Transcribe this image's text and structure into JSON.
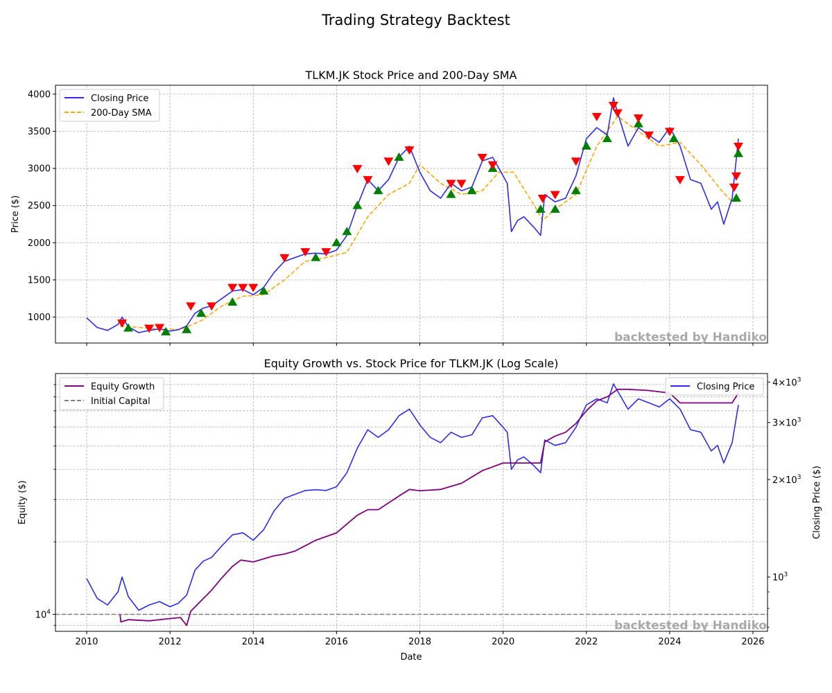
{
  "figure": {
    "suptitle": "Trading Strategy Backtest",
    "watermark": "backtested by Handiko"
  },
  "colors": {
    "closing_price": "#2b2bf0",
    "sma": "#ffa500",
    "equity": "#800080",
    "initial_capital": "#808080",
    "buy_marker": "#008000",
    "sell_marker": "#ff0000"
  },
  "chart_data": [
    {
      "type": "line",
      "title": "TLKM.JK Stock Price and 200-Day SMA",
      "xlabel": "",
      "ylabel": "Price ($)",
      "xlim": [
        2009.25,
        2026.35
      ],
      "ylim": [
        650,
        4120
      ],
      "yticks": [
        1000,
        1500,
        2000,
        2500,
        3000,
        3500,
        4000
      ],
      "grid": true,
      "legend": "upper left",
      "series": [
        {
          "name": "Closing Price",
          "style": "solid",
          "x": [
            2010.0,
            2010.25,
            2010.5,
            2010.75,
            2010.85,
            2011.0,
            2011.25,
            2011.5,
            2011.75,
            2012.0,
            2012.2,
            2012.4,
            2012.6,
            2012.8,
            2013.0,
            2013.25,
            2013.5,
            2013.75,
            2014.0,
            2014.25,
            2014.5,
            2014.75,
            2015.0,
            2015.25,
            2015.5,
            2015.75,
            2016.0,
            2016.25,
            2016.5,
            2016.75,
            2017.0,
            2017.25,
            2017.5,
            2017.75,
            2018.0,
            2018.25,
            2018.5,
            2018.75,
            2019.0,
            2019.25,
            2019.5,
            2019.75,
            2020.0,
            2020.1,
            2020.2,
            2020.35,
            2020.5,
            2020.75,
            2020.9,
            2021.0,
            2021.25,
            2021.5,
            2021.75,
            2022.0,
            2022.25,
            2022.5,
            2022.65,
            2022.75,
            2023.0,
            2023.25,
            2023.5,
            2023.75,
            2024.0,
            2024.25,
            2024.5,
            2024.75,
            2025.0,
            2025.15,
            2025.3,
            2025.5,
            2025.65
          ],
          "values": [
            990,
            860,
            820,
            900,
            1000,
            870,
            790,
            820,
            840,
            810,
            830,
            880,
            1050,
            1120,
            1150,
            1250,
            1350,
            1370,
            1300,
            1400,
            1600,
            1750,
            1800,
            1850,
            1860,
            1850,
            1900,
            2100,
            2500,
            2850,
            2700,
            2850,
            3150,
            3300,
            2950,
            2700,
            2600,
            2800,
            2700,
            2750,
            3100,
            3150,
            2900,
            2800,
            2150,
            2300,
            2350,
            2200,
            2100,
            2650,
            2550,
            2600,
            2900,
            3400,
            3550,
            3450,
            3950,
            3750,
            3300,
            3550,
            3450,
            3350,
            3550,
            3300,
            2850,
            2800,
            2450,
            2550,
            2250,
            2600,
            3400
          ]
        },
        {
          "name": "200-Day SMA",
          "style": "dashed",
          "x": [
            2010.8,
            2011.25,
            2011.75,
            2012.25,
            2012.75,
            2013.25,
            2013.75,
            2014.25,
            2014.75,
            2015.25,
            2015.75,
            2016.25,
            2016.75,
            2017.25,
            2017.75,
            2018.0,
            2018.5,
            2019.0,
            2019.5,
            2019.9,
            2020.25,
            2020.75,
            2020.95,
            2021.25,
            2021.75,
            2022.25,
            2022.75,
            2023.25,
            2023.75,
            2024.25,
            2024.75,
            2025.25,
            2025.5,
            2025.65
          ],
          "values": [
            880,
            860,
            840,
            830,
            950,
            1150,
            1280,
            1300,
            1500,
            1750,
            1800,
            1870,
            2350,
            2650,
            2800,
            3050,
            2800,
            2650,
            2700,
            2950,
            2950,
            2500,
            2300,
            2450,
            2650,
            3300,
            3700,
            3500,
            3300,
            3350,
            3050,
            2700,
            2550,
            2580
          ]
        }
      ],
      "buy_signals": {
        "x": [
          2011.0,
          2011.9,
          2012.4,
          2012.75,
          2013.5,
          2014.25,
          2015.5,
          2016.0,
          2016.25,
          2016.5,
          2017.0,
          2017.5,
          2018.75,
          2019.25,
          2019.75,
          2020.9,
          2021.25,
          2021.75,
          2022.0,
          2022.5,
          2023.25,
          2024.1,
          2025.6,
          2025.65
        ],
        "values": [
          850,
          800,
          830,
          1050,
          1200,
          1350,
          1800,
          2000,
          2150,
          2500,
          2700,
          3150,
          2650,
          2700,
          3000,
          2450,
          2450,
          2700,
          3300,
          3400,
          3600,
          3400,
          2600,
          3200
        ]
      },
      "sell_signals": {
        "x": [
          2010.85,
          2011.5,
          2011.75,
          2012.5,
          2013.0,
          2013.5,
          2013.75,
          2014.0,
          2014.75,
          2015.25,
          2015.75,
          2016.5,
          2016.75,
          2017.25,
          2017.75,
          2018.75,
          2019.0,
          2019.5,
          2019.75,
          2020.95,
          2021.25,
          2021.75,
          2022.25,
          2022.65,
          2022.75,
          2023.25,
          2023.5,
          2024.0,
          2024.25,
          2025.55,
          2025.6,
          2025.65
        ],
        "values": [
          920,
          850,
          860,
          1150,
          1150,
          1400,
          1400,
          1400,
          1800,
          1880,
          1880,
          3000,
          2850,
          3100,
          3250,
          2800,
          2800,
          3150,
          3050,
          2600,
          2650,
          3100,
          3700,
          3850,
          3750,
          3680,
          3450,
          3500,
          2850,
          2750,
          2900,
          3300
        ]
      }
    },
    {
      "type": "line",
      "title": "Equity Growth vs. Stock Price for TLKM.JK (Log Scale)",
      "xlabel": "Date",
      "ylabel": "Equity ($)",
      "y2label": "Closing Price ($)",
      "xlim": [
        2009.25,
        2026.35
      ],
      "xticks": [
        2010,
        2012,
        2014,
        2016,
        2018,
        2020,
        2022,
        2024,
        2026
      ],
      "y_scale": "log",
      "ylim": [
        8500,
        100000
      ],
      "yticks": [
        {
          "value": 10000,
          "label": "10^4"
        }
      ],
      "y2_scale": "log",
      "y2lim": [
        680,
        4250
      ],
      "y2ticks": [
        {
          "value": 1000,
          "label": "10^3"
        },
        {
          "value": 2000,
          "label": "2×10^3"
        },
        {
          "value": 3000,
          "label": "3×10^3"
        },
        {
          "value": 4000,
          "label": "4×10^3"
        }
      ],
      "grid": true,
      "legend_left": "upper left",
      "legend_right": "upper right",
      "series": [
        {
          "name": "Equity Growth",
          "axis": "left",
          "style": "solid",
          "x": [
            2010.8,
            2010.82,
            2011.0,
            2011.5,
            2012.0,
            2012.25,
            2012.4,
            2012.5,
            2012.75,
            2013.0,
            2013.25,
            2013.5,
            2013.7,
            2014.0,
            2014.5,
            2014.75,
            2015.0,
            2015.5,
            2016.0,
            2016.5,
            2016.75,
            2017.0,
            2017.5,
            2017.75,
            2018.0,
            2018.5,
            2019.0,
            2019.5,
            2020.0,
            2020.5,
            2020.9,
            2021.0,
            2021.25,
            2021.5,
            2021.75,
            2022.0,
            2022.25,
            2022.5,
            2022.75,
            2023.0,
            2023.5,
            2024.0,
            2024.25,
            2024.5,
            2025.0,
            2025.5,
            2025.65
          ],
          "values": [
            10000,
            9300,
            9500,
            9400,
            9600,
            9700,
            9000,
            10300,
            11400,
            12600,
            14200,
            15800,
            16800,
            16500,
            17500,
            17800,
            18300,
            20300,
            21800,
            25800,
            27200,
            27200,
            31000,
            33000,
            32600,
            33000,
            35000,
            39500,
            42500,
            42500,
            42500,
            52000,
            55000,
            57000,
            62000,
            70000,
            77000,
            80000,
            86000,
            86000,
            85000,
            83000,
            75500,
            75500,
            75500,
            75500,
            83000
          ]
        },
        {
          "name": "Initial Capital",
          "axis": "left",
          "style": "dashed",
          "x": [
            2009.25,
            2026.35
          ],
          "values": [
            10000,
            10000
          ]
        },
        {
          "name": "Closing Price",
          "axis": "right",
          "style": "solid",
          "x": [
            2010.0,
            2010.25,
            2010.5,
            2010.75,
            2010.85,
            2011.0,
            2011.25,
            2011.5,
            2011.75,
            2012.0,
            2012.2,
            2012.4,
            2012.6,
            2012.8,
            2013.0,
            2013.25,
            2013.5,
            2013.75,
            2014.0,
            2014.25,
            2014.5,
            2014.75,
            2015.0,
            2015.25,
            2015.5,
            2015.75,
            2016.0,
            2016.25,
            2016.5,
            2016.75,
            2017.0,
            2017.25,
            2017.5,
            2017.75,
            2018.0,
            2018.25,
            2018.5,
            2018.75,
            2019.0,
            2019.25,
            2019.5,
            2019.75,
            2020.0,
            2020.1,
            2020.2,
            2020.35,
            2020.5,
            2020.75,
            2020.9,
            2021.0,
            2021.25,
            2021.5,
            2021.75,
            2022.0,
            2022.25,
            2022.5,
            2022.65,
            2022.75,
            2023.0,
            2023.25,
            2023.5,
            2023.75,
            2024.0,
            2024.25,
            2024.5,
            2024.75,
            2025.0,
            2025.15,
            2025.3,
            2025.5,
            2025.65
          ],
          "values": [
            990,
            860,
            820,
            900,
            1000,
            870,
            790,
            820,
            840,
            810,
            830,
            880,
            1050,
            1120,
            1150,
            1250,
            1350,
            1370,
            1300,
            1400,
            1600,
            1750,
            1800,
            1850,
            1860,
            1850,
            1900,
            2100,
            2500,
            2850,
            2700,
            2850,
            3150,
            3300,
            2950,
            2700,
            2600,
            2800,
            2700,
            2750,
            3100,
            3150,
            2900,
            2800,
            2150,
            2300,
            2350,
            2200,
            2100,
            2650,
            2550,
            2600,
            2900,
            3400,
            3550,
            3450,
            3950,
            3750,
            3300,
            3550,
            3450,
            3350,
            3550,
            3300,
            2850,
            2800,
            2450,
            2550,
            2250,
            2600,
            3400
          ]
        }
      ]
    }
  ]
}
